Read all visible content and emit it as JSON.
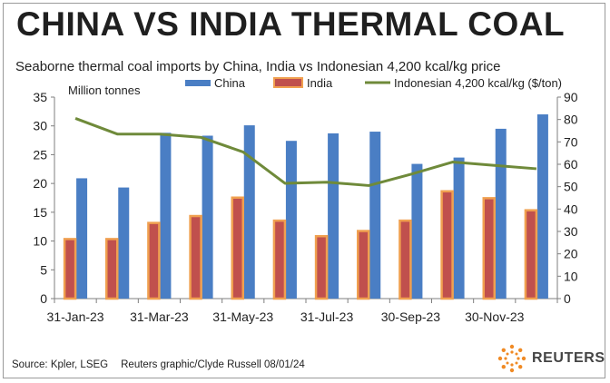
{
  "header": {
    "title": "CHINA VS INDIA THERMAL COAL",
    "subtitle": "Seaborne thermal coal imports by China, India vs Indonesian 4,200 kcal/kg price"
  },
  "footer": {
    "source": "Source: Kpler, LSEG",
    "credit": "Reuters graphic/Clyde Russell 08/01/24",
    "brand": "REUTERS"
  },
  "colors": {
    "china": "#4a7ec4",
    "india_fill": "#c0504d",
    "india_border": "#f0a050",
    "price_line": "#6f8a3a",
    "axis": "#7f7f7f",
    "logo": "#f08a24"
  },
  "chart_data": {
    "type": "bar",
    "left_axis_label": "Million tonnes",
    "ylim": [
      0,
      35
    ],
    "y_ticks": [
      "0",
      "5",
      "10",
      "15",
      "20",
      "25",
      "30",
      "35"
    ],
    "y2lim": [
      0,
      90
    ],
    "y2_ticks": [
      "0",
      "10",
      "20",
      "30",
      "40",
      "50",
      "60",
      "70",
      "80",
      "90"
    ],
    "x_tick_labels": [
      {
        "index": 0,
        "label": "31-Jan-23"
      },
      {
        "index": 2,
        "label": "31-Mar-23"
      },
      {
        "index": 4,
        "label": "31-May-23"
      },
      {
        "index": 6,
        "label": "31-Jul-23"
      },
      {
        "index": 8,
        "label": "30-Sep-23"
      },
      {
        "index": 10,
        "label": "30-Nov-23"
      }
    ],
    "categories": [
      "Jan-23",
      "Feb-23",
      "Mar-23",
      "Apr-23",
      "May-23",
      "Jun-23",
      "Jul-23",
      "Aug-23",
      "Sep-23",
      "Oct-23",
      "Nov-23",
      "Dec-23"
    ],
    "series": [
      {
        "name": "China",
        "axis": "left",
        "kind": "bar",
        "values": [
          20.9,
          19.3,
          28.8,
          28.3,
          30.1,
          27.4,
          28.7,
          29.0,
          23.4,
          24.5,
          29.5,
          32.0
        ]
      },
      {
        "name": "India",
        "axis": "left",
        "kind": "bar",
        "values": [
          10.5,
          10.5,
          13.3,
          14.5,
          17.7,
          13.7,
          11.0,
          11.9,
          13.7,
          18.8,
          17.6,
          15.5
        ]
      },
      {
        "name": "Indonesian 4,200 kcal/kg ($/ton)",
        "axis": "right",
        "kind": "line",
        "values": [
          80.5,
          73.5,
          73.5,
          72.0,
          65.5,
          51.5,
          52.0,
          50.5,
          55.5,
          61.0,
          59.5,
          58.0
        ]
      }
    ]
  }
}
